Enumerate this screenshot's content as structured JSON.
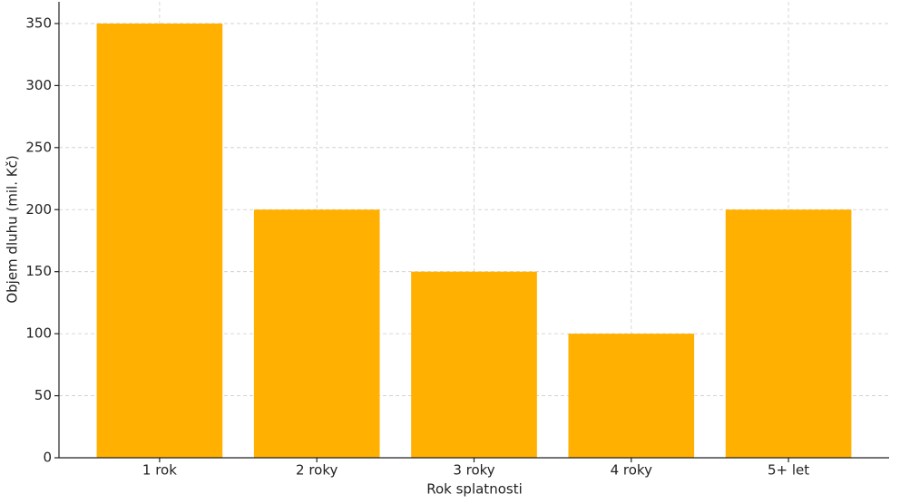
{
  "chart_data": {
    "type": "bar",
    "categories": [
      "1 rok",
      "2 roky",
      "3 roky",
      "4 roky",
      "5+ let"
    ],
    "values": [
      350,
      200,
      150,
      100,
      200
    ],
    "color": "#ffb000",
    "xlabel": "Rok splatnosti",
    "ylabel": "Objem dluhu (mil. Kč)",
    "ylim": [
      0,
      367.5
    ],
    "yticks": [
      0,
      50,
      100,
      150,
      200,
      250,
      300,
      350
    ],
    "grid": true
  }
}
